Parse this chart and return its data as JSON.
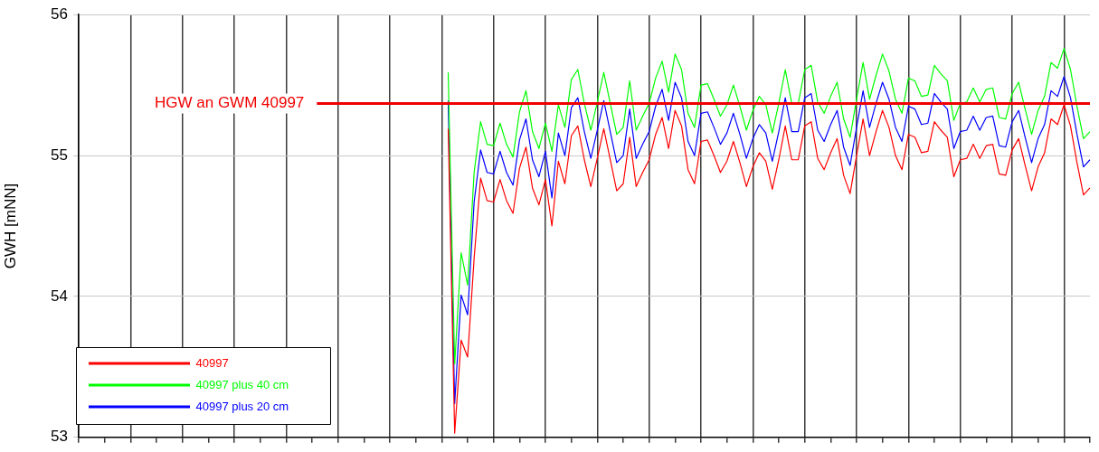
{
  "chart_data": {
    "type": "line",
    "ylabel": "GWH [mNN]",
    "categories": [
      null,
      null,
      null,
      null,
      null,
      null,
      null,
      null,
      null,
      null,
      null,
      null,
      null,
      null,
      null,
      null,
      null,
      null,
      null,
      null,
      null,
      null,
      null,
      null,
      null,
      null,
      null,
      null,
      null,
      null,
      null,
      null,
      null,
      null,
      null,
      null,
      null,
      null,
      null,
      null,
      null,
      null,
      null,
      null,
      null,
      null,
      null,
      null,
      null,
      null,
      null,
      null,
      null,
      null,
      null,
      null,
      null,
      null,
      null,
      null,
      null,
      null,
      null,
      null,
      null,
      null,
      null,
      null,
      null,
      null,
      null,
      null,
      null,
      null,
      null,
      null,
      null,
      null,
      null,
      null,
      null,
      null,
      null,
      null,
      null,
      null,
      null,
      null,
      null,
      null,
      null,
      null,
      null,
      null,
      null,
      null,
      null,
      null,
      null,
      null,
      null,
      null,
      null,
      null,
      null,
      null,
      null,
      null,
      null,
      null,
      null,
      null,
      null,
      null,
      null,
      null,
      null,
      null,
      null,
      null,
      null,
      null,
      null,
      null,
      null,
      null,
      null,
      null,
      null,
      null,
      null,
      null,
      null,
      null,
      null,
      null,
      null,
      null,
      null,
      null,
      null,
      null,
      null,
      null,
      null,
      null,
      null,
      null,
      null,
      null,
      null,
      null,
      null,
      null,
      null,
      null,
      null
    ],
    "ylim": [
      53,
      56
    ],
    "yticks": [
      53,
      54,
      55,
      56
    ],
    "tick_labels": "y",
    "grid": true,
    "legend": "bottom left",
    "marker": "none",
    "line_style": "solid",
    "ref_lines": [
      {
        "axis": "y",
        "value": 55.37,
        "label": "HGW an GWM 40997",
        "color": "#f00000"
      }
    ],
    "series": [
      {
        "name": "40997",
        "color": "#ff0000",
        "values": [
          null,
          null,
          null,
          null,
          null,
          null,
          null,
          null,
          null,
          null,
          null,
          null,
          null,
          null,
          null,
          null,
          null,
          null,
          null,
          null,
          null,
          null,
          null,
          null,
          null,
          null,
          null,
          null,
          null,
          null,
          null,
          null,
          null,
          null,
          null,
          null,
          null,
          null,
          null,
          null,
          null,
          null,
          null,
          null,
          null,
          null,
          null,
          null,
          null,
          null,
          null,
          null,
          null,
          null,
          null,
          null,
          null,
          55.19,
          53.03,
          53.69,
          53.57,
          54.27,
          54.84,
          54.68,
          54.67,
          54.83,
          54.68,
          54.59,
          54.91,
          55.06,
          54.77,
          54.65,
          54.83,
          54.5,
          54.96,
          54.8,
          55.14,
          55.21,
          54.97,
          54.78,
          54.98,
          55.19,
          54.97,
          54.75,
          54.8,
          55.13,
          54.78,
          54.88,
          54.97,
          55.15,
          55.27,
          55.05,
          55.32,
          55.21,
          54.9,
          54.8,
          55.1,
          55.11,
          55.0,
          54.88,
          54.96,
          55.1,
          54.95,
          54.78,
          54.92,
          55.02,
          54.96,
          54.76,
          54.97,
          55.21,
          54.97,
          54.97,
          55.21,
          55.24,
          54.98,
          54.9,
          55.02,
          55.12,
          54.86,
          54.73,
          55.0,
          55.26,
          55.0,
          55.17,
          55.32,
          55.2,
          55.0,
          54.9,
          55.15,
          55.13,
          55.02,
          55.03,
          55.24,
          55.18,
          55.13,
          54.85,
          54.97,
          54.98,
          55.08,
          54.98,
          55.07,
          55.08,
          54.87,
          54.86,
          55.04,
          55.12,
          54.93,
          54.75,
          54.92,
          55.02,
          55.26,
          55.22,
          55.36,
          55.21,
          54.95,
          54.72,
          54.77
        ]
      },
      {
        "name": "40997 plus 40 cm",
        "color": "#00ff00",
        "values": [
          null,
          null,
          null,
          null,
          null,
          null,
          null,
          null,
          null,
          null,
          null,
          null,
          null,
          null,
          null,
          null,
          null,
          null,
          null,
          null,
          null,
          null,
          null,
          null,
          null,
          null,
          null,
          null,
          null,
          null,
          null,
          null,
          null,
          null,
          null,
          null,
          null,
          null,
          null,
          null,
          null,
          null,
          null,
          null,
          null,
          null,
          null,
          null,
          null,
          null,
          null,
          null,
          null,
          null,
          null,
          null,
          null,
          55.59,
          53.52,
          54.31,
          54.08,
          54.88,
          55.24,
          55.08,
          55.07,
          55.23,
          55.08,
          54.99,
          55.31,
          55.46,
          55.17,
          55.05,
          55.23,
          55.03,
          55.36,
          55.2,
          55.54,
          55.61,
          55.37,
          55.18,
          55.38,
          55.59,
          55.37,
          55.15,
          55.2,
          55.53,
          55.18,
          55.28,
          55.37,
          55.55,
          55.67,
          55.45,
          55.72,
          55.61,
          55.3,
          55.2,
          55.5,
          55.51,
          55.4,
          55.28,
          55.36,
          55.5,
          55.35,
          55.18,
          55.32,
          55.42,
          55.36,
          55.16,
          55.37,
          55.61,
          55.37,
          55.37,
          55.61,
          55.64,
          55.38,
          55.3,
          55.42,
          55.52,
          55.26,
          55.13,
          55.4,
          55.66,
          55.4,
          55.57,
          55.72,
          55.6,
          55.4,
          55.3,
          55.55,
          55.53,
          55.42,
          55.43,
          55.64,
          55.58,
          55.53,
          55.25,
          55.37,
          55.38,
          55.48,
          55.38,
          55.47,
          55.48,
          55.27,
          55.26,
          55.44,
          55.52,
          55.33,
          55.15,
          55.32,
          55.42,
          55.66,
          55.62,
          55.76,
          55.61,
          55.35,
          55.12,
          55.17
        ]
      },
      {
        "name": "40997 plus 20 cm",
        "color": "#0000ff",
        "values": [
          null,
          null,
          null,
          null,
          null,
          null,
          null,
          null,
          null,
          null,
          null,
          null,
          null,
          null,
          null,
          null,
          null,
          null,
          null,
          null,
          null,
          null,
          null,
          null,
          null,
          null,
          null,
          null,
          null,
          null,
          null,
          null,
          null,
          null,
          null,
          null,
          null,
          null,
          null,
          null,
          null,
          null,
          null,
          null,
          null,
          null,
          null,
          null,
          null,
          null,
          null,
          null,
          null,
          null,
          null,
          null,
          null,
          55.39,
          53.24,
          54.01,
          53.87,
          54.67,
          55.04,
          54.88,
          54.87,
          55.03,
          54.88,
          54.79,
          55.11,
          55.26,
          54.97,
          54.85,
          55.03,
          54.7,
          55.16,
          55.0,
          55.34,
          55.41,
          55.17,
          54.98,
          55.18,
          55.39,
          55.17,
          54.95,
          55.0,
          55.33,
          54.98,
          55.08,
          55.17,
          55.35,
          55.47,
          55.25,
          55.52,
          55.41,
          55.1,
          55.0,
          55.3,
          55.31,
          55.2,
          55.08,
          55.16,
          55.3,
          55.15,
          54.98,
          55.12,
          55.22,
          55.16,
          54.96,
          55.17,
          55.41,
          55.17,
          55.17,
          55.41,
          55.44,
          55.18,
          55.1,
          55.22,
          55.32,
          55.06,
          54.93,
          55.2,
          55.46,
          55.2,
          55.37,
          55.52,
          55.4,
          55.2,
          55.1,
          55.35,
          55.33,
          55.22,
          55.23,
          55.44,
          55.38,
          55.33,
          55.05,
          55.17,
          55.18,
          55.28,
          55.18,
          55.27,
          55.28,
          55.07,
          55.06,
          55.24,
          55.32,
          55.13,
          54.95,
          55.12,
          55.22,
          55.46,
          55.42,
          55.56,
          55.41,
          55.15,
          54.92,
          54.97
        ]
      }
    ]
  }
}
